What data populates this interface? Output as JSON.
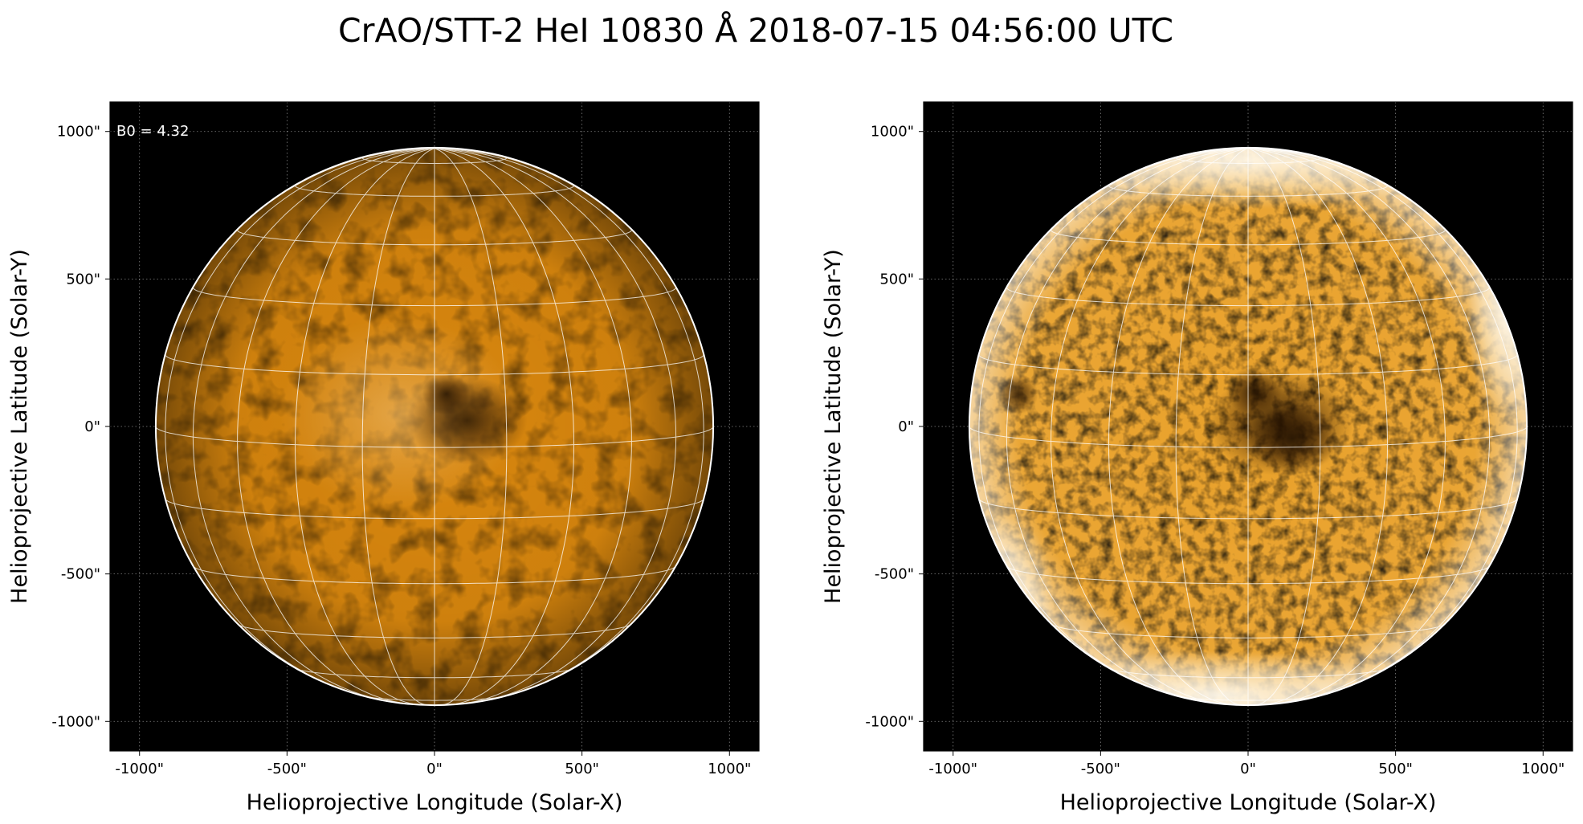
{
  "figure": {
    "title": "CrAO/STT-2 HeI 10830 Å 2018-07-15 04:56:00 UTC"
  },
  "axes_range": {
    "x": [
      -1100,
      1100
    ],
    "y": [
      -1100,
      1100
    ]
  },
  "solar_radius_arcsec": 945,
  "ticks": {
    "values": [
      -1000,
      -500,
      0,
      500,
      1000
    ],
    "labels": [
      "-1000\"",
      "-500\"",
      "0\"",
      "500\"",
      "1000\""
    ]
  },
  "grid": {
    "axis_grid": "dotted",
    "heliographic_grid": true,
    "lon_step_deg": 15,
    "lat_step_deg": 15
  },
  "b0_deg": 4.32,
  "colors": {
    "background": "#000000",
    "disk_left": "#d9870e",
    "disk_right": "#e9a12a",
    "limb_line": "#ffffff",
    "grid_line": "#ffffff"
  },
  "panels": [
    {
      "xlabel": "Helioprojective Longitude (Solar-X)",
      "ylabel": "Helioprojective Latitude (Solar-Y)",
      "annotation": "B0 = 4.32"
    },
    {
      "xlabel": "Helioprojective Longitude (Solar-X)",
      "ylabel": "Helioprojective Latitude (Solar-Y)",
      "annotation": ""
    }
  ]
}
